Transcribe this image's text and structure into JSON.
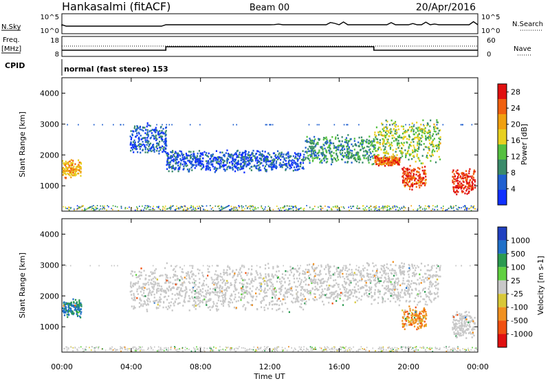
{
  "header": {
    "station": "Hankasalmi (fitACF)",
    "beam": "Beam 00",
    "date": "20/Apr/2016"
  },
  "top_labels": {
    "nsky": "N.Sky",
    "nsky_hi": "10^5",
    "nsky_lo": "10^0",
    "nsearch": "N.Search",
    "nsearch_hi": "10^5",
    "nsearch_lo": "10^0",
    "freq": "Freq.",
    "freq_unit": "[MHz]",
    "freq_hi": "18",
    "freq_lo": "8",
    "nave": "Nave",
    "nave_hi": "60",
    "nave_lo": "0",
    "cpid": "CPID",
    "cpid_text": "normal (fast stereo) 153"
  },
  "colors": {
    "power_scale": [
      "#1030ff",
      "#2060d0",
      "#3a8a6a",
      "#55c040",
      "#e8d020",
      "#f0a010",
      "#f06010",
      "#e01010"
    ],
    "velocity_scale": [
      "#2040c0",
      "#2070c8",
      "#2a9a50",
      "#60d040",
      "#c8c8c8",
      "#d8c838",
      "#f09020",
      "#f05010",
      "#e01010"
    ],
    "ground_gray": "#c8c8c8"
  },
  "chart_data": [
    {
      "type": "heatmap",
      "name": "power",
      "ylabel": "Slant Range [km]",
      "xlabel": "Time UT",
      "xticks": [
        "00:00",
        "04:00",
        "08:00",
        "12:00",
        "16:00",
        "20:00",
        "00:00"
      ],
      "xlim_hours": [
        0,
        24
      ],
      "ylim": [
        180,
        4500
      ],
      "yticks": [
        1000,
        2000,
        3000,
        4000
      ],
      "colorbar_label": "Power [dB]",
      "colorbar_ticks": [
        4,
        8,
        12,
        16,
        20,
        24,
        28
      ],
      "colorbar_range": [
        0,
        30
      ],
      "features": [
        {
          "t0": 0.0,
          "t1": 1.1,
          "r0": 1250,
          "r1": 1900,
          "level": 20
        },
        {
          "t0": 3.9,
          "t1": 6.0,
          "r0": 2000,
          "r1": 3100,
          "level": 6
        },
        {
          "t0": 6.0,
          "t1": 14.0,
          "r0": 1450,
          "r1": 2200,
          "level": 5
        },
        {
          "t0": 14.0,
          "t1": 18.0,
          "r0": 1700,
          "r1": 2700,
          "level": 10
        },
        {
          "t0": 18.0,
          "t1": 21.8,
          "r0": 1700,
          "r1": 3200,
          "level": 14
        },
        {
          "t0": 18.0,
          "t1": 19.5,
          "r0": 1650,
          "r1": 2000,
          "level": 24
        },
        {
          "t0": 19.6,
          "t1": 21.0,
          "r0": 900,
          "r1": 1700,
          "level": 26
        },
        {
          "t0": 22.5,
          "t1": 23.8,
          "r0": 700,
          "r1": 1600,
          "level": 28
        }
      ]
    },
    {
      "type": "heatmap",
      "name": "velocity",
      "ylabel": "Slant Range [km]",
      "xlabel": "Time UT",
      "xticks": [
        "00:00",
        "04:00",
        "08:00",
        "12:00",
        "16:00",
        "20:00",
        "00:00"
      ],
      "xlim_hours": [
        0,
        24
      ],
      "ylim": [
        180,
        4500
      ],
      "yticks": [
        1000,
        2000,
        3000,
        4000
      ],
      "colorbar_label": "Velocity [m s-1]",
      "colorbar_ticks": [
        "1000",
        "500",
        "100",
        "25",
        "-25",
        "-100",
        "-500",
        "-1000"
      ],
      "features": [
        {
          "t0": 0.0,
          "t1": 1.1,
          "r0": 1300,
          "r1": 1950,
          "velocity": 500
        },
        {
          "t0": 3.9,
          "t1": 14.0,
          "r0": 1450,
          "r1": 3100,
          "velocity": 0
        },
        {
          "t0": 14.0,
          "t1": 21.8,
          "r0": 1700,
          "r1": 3200,
          "velocity": 0
        },
        {
          "t0": 19.6,
          "t1": 21.0,
          "r0": 900,
          "r1": 1700,
          "velocity": -300
        },
        {
          "t0": 22.5,
          "t1": 23.8,
          "r0": 600,
          "r1": 1600,
          "velocity": 0
        }
      ]
    }
  ]
}
